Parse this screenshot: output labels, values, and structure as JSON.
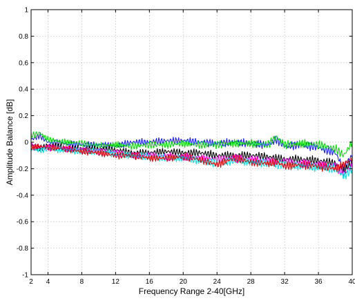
{
  "chart_data": {
    "type": "line",
    "title": "",
    "xlabel": "Frequency Range 2-40[GHz]",
    "ylabel": "Amplitude Balance [dB]",
    "xlim": [
      2,
      40
    ],
    "ylim": [
      -1,
      1
    ],
    "grid": true,
    "xticks": [
      2,
      4,
      8,
      12,
      16,
      20,
      24,
      28,
      32,
      36,
      40
    ],
    "yticks": [
      -1,
      -0.8,
      -0.6,
      -0.4,
      -0.2,
      0,
      0.2,
      0.4,
      0.6,
      0.8,
      1
    ],
    "xtick_labels": [
      "2",
      "4",
      "8",
      "12",
      "16",
      "20",
      "24",
      "28",
      "32",
      "36",
      "40"
    ],
    "ytick_labels": [
      "-1",
      "-0.8",
      "-0.6",
      "-0.4",
      "-0.2",
      "0",
      "0.2",
      "0.4",
      "0.6",
      "0.8",
      "1"
    ],
    "series": [
      {
        "color": "#1a1aff",
        "x": [
          2,
          3,
          4,
          6,
          8,
          10,
          12,
          14,
          16,
          18,
          20,
          22,
          24,
          26,
          28,
          30,
          31,
          32,
          34,
          36,
          38,
          39,
          40
        ],
        "y": [
          0.02,
          0.05,
          0.0,
          -0.01,
          -0.02,
          -0.02,
          -0.03,
          0.0,
          0.0,
          0.01,
          0.01,
          0.0,
          -0.01,
          0.0,
          -0.01,
          -0.02,
          0.02,
          -0.03,
          -0.02,
          -0.04,
          -0.08,
          -0.2,
          -0.1
        ]
      },
      {
        "color": "#00dd00",
        "x": [
          2,
          3,
          4,
          6,
          8,
          10,
          12,
          14,
          16,
          18,
          20,
          22,
          24,
          26,
          28,
          30,
          31,
          32,
          34,
          36,
          38,
          39,
          40
        ],
        "y": [
          0.05,
          0.07,
          0.02,
          0.0,
          -0.01,
          -0.03,
          -0.02,
          -0.03,
          -0.02,
          -0.02,
          -0.01,
          -0.02,
          -0.02,
          -0.01,
          -0.01,
          -0.02,
          0.04,
          -0.02,
          -0.01,
          -0.02,
          -0.05,
          -0.1,
          0.0
        ]
      },
      {
        "color": "#000000",
        "x": [
          2,
          3,
          4,
          6,
          8,
          10,
          12,
          14,
          16,
          18,
          20,
          22,
          24,
          26,
          28,
          30,
          31,
          32,
          34,
          36,
          38,
          39,
          40
        ],
        "y": [
          -0.02,
          -0.05,
          -0.02,
          -0.04,
          -0.05,
          -0.05,
          -0.06,
          -0.08,
          -0.08,
          -0.07,
          -0.08,
          -0.08,
          -0.1,
          -0.1,
          -0.1,
          -0.11,
          -0.12,
          -0.13,
          -0.13,
          -0.14,
          -0.16,
          -0.22,
          -0.15
        ]
      },
      {
        "color": "#ff00ff",
        "x": [
          2,
          3,
          4,
          6,
          8,
          10,
          12,
          14,
          16,
          18,
          20,
          22,
          24,
          26,
          28,
          30,
          31,
          32,
          34,
          36,
          38,
          39,
          40
        ],
        "y": [
          -0.03,
          -0.04,
          -0.04,
          -0.05,
          -0.06,
          -0.07,
          -0.08,
          -0.1,
          -0.1,
          -0.11,
          -0.11,
          -0.12,
          -0.13,
          -0.12,
          -0.13,
          -0.14,
          -0.15,
          -0.15,
          -0.16,
          -0.17,
          -0.18,
          -0.24,
          -0.18
        ]
      },
      {
        "color": "#00e6e6",
        "x": [
          2,
          3,
          4,
          6,
          8,
          10,
          12,
          14,
          16,
          18,
          20,
          22,
          24,
          26,
          28,
          30,
          31,
          32,
          34,
          36,
          38,
          39,
          40
        ],
        "y": [
          -0.05,
          -0.06,
          -0.05,
          -0.06,
          -0.07,
          -0.07,
          -0.09,
          -0.1,
          -0.11,
          -0.12,
          -0.12,
          -0.14,
          -0.16,
          -0.14,
          -0.15,
          -0.16,
          -0.17,
          -0.17,
          -0.18,
          -0.19,
          -0.2,
          -0.26,
          -0.2
        ]
      },
      {
        "color": "#e00000",
        "x": [
          2,
          3,
          4,
          6,
          8,
          10,
          12,
          14,
          16,
          18,
          20,
          22,
          24,
          26,
          28,
          30,
          31,
          32,
          34,
          36,
          38,
          39,
          40
        ],
        "y": [
          -0.04,
          -0.03,
          -0.04,
          -0.05,
          -0.07,
          -0.08,
          -0.1,
          -0.1,
          -0.12,
          -0.12,
          -0.11,
          -0.13,
          -0.17,
          -0.12,
          -0.15,
          -0.16,
          -0.15,
          -0.18,
          -0.17,
          -0.18,
          -0.2,
          -0.17,
          -0.12
        ]
      }
    ]
  }
}
